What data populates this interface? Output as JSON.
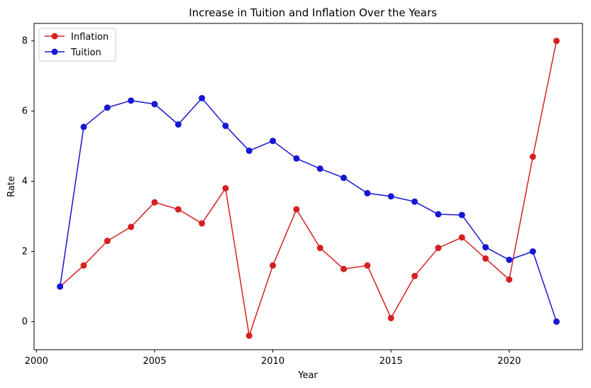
{
  "chart_data": {
    "type": "line",
    "title": "Increase in Tuition and Inflation Over the Years",
    "xlabel": "Year",
    "ylabel": "Rate",
    "xlim": [
      1999.9,
      2023.1
    ],
    "ylim": [
      -0.8,
      8.5
    ],
    "xticks": [
      2000,
      2005,
      2010,
      2015,
      2020
    ],
    "yticks": [
      0,
      2,
      4,
      6,
      8
    ],
    "grid": false,
    "legend": "top-left",
    "x": [
      2001,
      2002,
      2003,
      2004,
      2005,
      2006,
      2007,
      2008,
      2009,
      2010,
      2011,
      2012,
      2013,
      2014,
      2015,
      2016,
      2017,
      2018,
      2019,
      2020,
      2021,
      2022
    ],
    "series": [
      {
        "name": "Inflation",
        "color": "#d62020",
        "values": [
          1.0,
          1.6,
          2.3,
          2.7,
          3.4,
          3.2,
          2.8,
          3.8,
          -0.4,
          1.6,
          3.2,
          2.1,
          1.5,
          1.6,
          0.1,
          1.3,
          2.1,
          2.4,
          1.8,
          1.2,
          4.7,
          8.0
        ]
      },
      {
        "name": "Tuition",
        "color": "#1616d4",
        "values": [
          1.0,
          5.55,
          6.1,
          6.3,
          6.2,
          5.62,
          6.37,
          5.58,
          4.87,
          5.15,
          4.65,
          4.36,
          4.1,
          3.66,
          3.57,
          3.42,
          3.06,
          3.04,
          2.12,
          1.76,
          2.0,
          0.0
        ]
      }
    ]
  }
}
